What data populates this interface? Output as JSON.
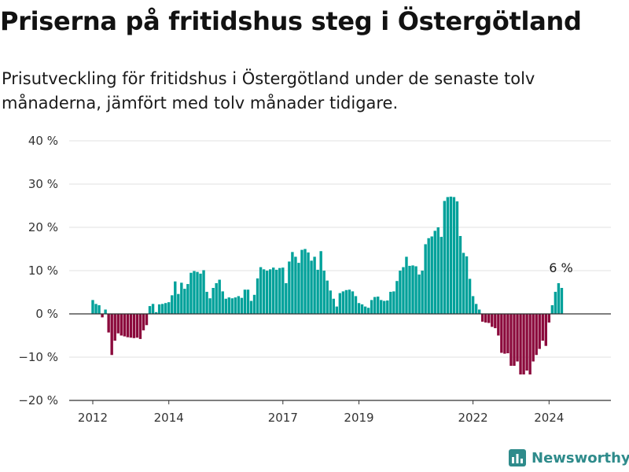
{
  "title": "Priserna på fritidshus steg i Östergötland",
  "subtitle": "Prisutveckling för fritidshus i Östergötland under de senaste tolv månaderna, jämfört med tolv månader tidigare.",
  "brand": "Newsworthy",
  "colors": {
    "positive": "#00a19a",
    "negative": "#8b0a3c",
    "axis": "#333333",
    "grid": "#e0e0e0"
  },
  "chart_data": {
    "type": "bar",
    "x_start": "2012-01",
    "frequency": "monthly",
    "y_unit": "%",
    "ylim": [
      -20,
      40
    ],
    "y_ticks": [
      -20,
      -10,
      0,
      10,
      20,
      30,
      40
    ],
    "y_tick_labels": [
      "−20 %",
      "−10 %",
      "0 %",
      "10 %",
      "20 %",
      "30 %",
      "40 %"
    ],
    "x_tick_labels": [
      "2012",
      "2014",
      "2017",
      "2019",
      "2022",
      "2024"
    ],
    "x_tick_positions": [
      "2012-01",
      "2014-01",
      "2017-01",
      "2019-01",
      "2022-01",
      "2024-01"
    ],
    "grid": true,
    "last_value_label": "6 %",
    "values": [
      3.2,
      2.3,
      2,
      -0.8,
      1,
      -4.3,
      -9.5,
      -6.2,
      -4.5,
      -5,
      -5.2,
      -5.4,
      -5.5,
      -5.6,
      -5.5,
      -5.8,
      -3.8,
      -2.6,
      1.8,
      2.3,
      0.4,
      2.2,
      2.3,
      2.5,
      2.7,
      4.3,
      7.5,
      4.6,
      7.2,
      5.8,
      6.9,
      9.5,
      9.9,
      9.7,
      9.3,
      10.1,
      5.1,
      3.6,
      6,
      7.1,
      7.9,
      5.2,
      3.5,
      3.8,
      3.6,
      3.8,
      4.1,
      3.7,
      5.6,
      5.6,
      3,
      4.4,
      8.2,
      10.8,
      10.3,
      10,
      10.3,
      10.7,
      10.2,
      10.6,
      10.7,
      7.1,
      12.1,
      14.3,
      13.2,
      11.8,
      14.8,
      15,
      14.2,
      12.3,
      13.2,
      10.2,
      14.5,
      10,
      7.7,
      5.4,
      3.5,
      1.7,
      4.8,
      5.2,
      5.5,
      5.6,
      5.2,
      4.1,
      2.5,
      2.2,
      1.7,
      1.4,
      3.2,
      3.9,
      4,
      3.2,
      3,
      3.1,
      5.1,
      5.2,
      7.6,
      10,
      10.8,
      13.2,
      11.1,
      11.2,
      11,
      9.1,
      10,
      16.1,
      17.5,
      17.9,
      19.2,
      20,
      17.8,
      26.1,
      27,
      27.1,
      27,
      26,
      18,
      14.1,
      13.3,
      8.1,
      4.1,
      2.3,
      1,
      -1.8,
      -2,
      -2.1,
      -3,
      -3.3,
      -5,
      -9,
      -9.2,
      -9.1,
      -12,
      -12,
      -11,
      -14,
      -14,
      -13.1,
      -14,
      -11,
      -9.5,
      -8.1,
      -6.2,
      -7.4,
      -2,
      2,
      5.1,
      7.1,
      6
    ]
  }
}
